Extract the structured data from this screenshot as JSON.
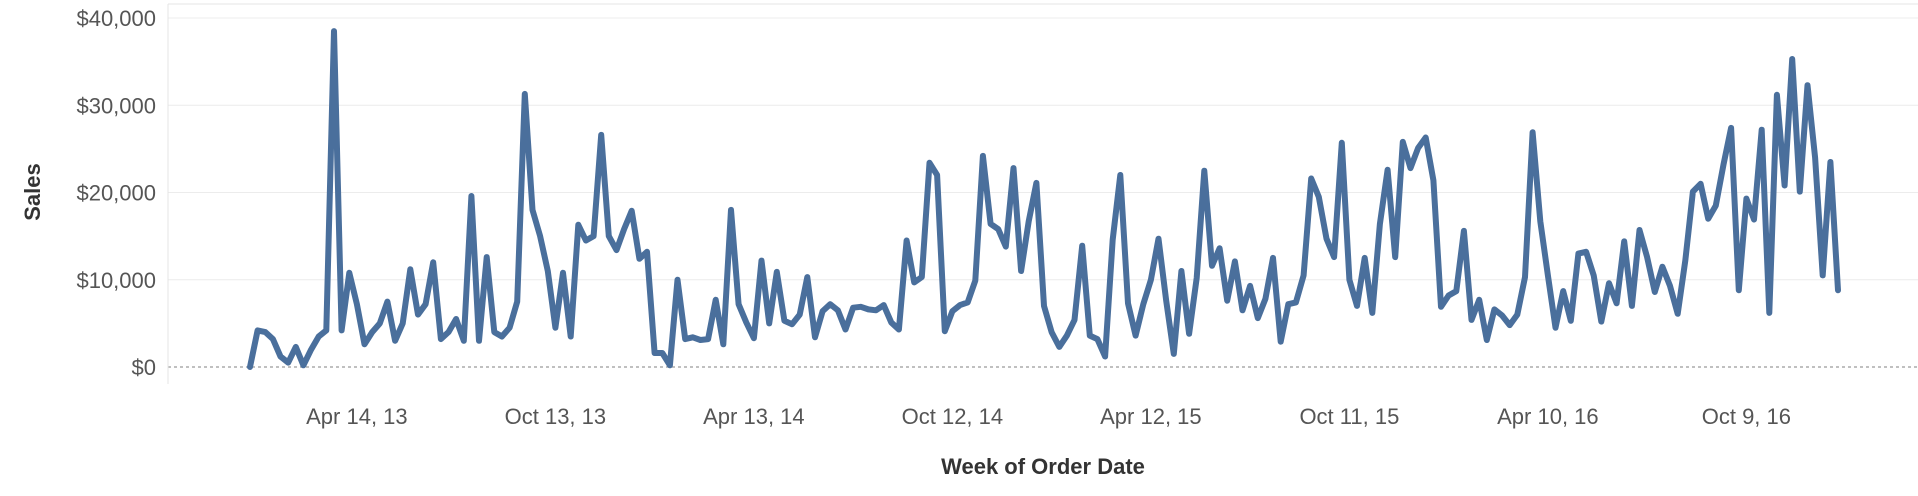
{
  "chart_data": {
    "type": "line",
    "title": "",
    "xlabel": "Week of Order Date",
    "ylabel": "Sales",
    "ylim": [
      0,
      40000
    ],
    "yticks": [
      {
        "value": 0,
        "label": "$0"
      },
      {
        "value": 10000,
        "label": "$10,000"
      },
      {
        "value": 20000,
        "label": "$20,000"
      },
      {
        "value": 30000,
        "label": "$30,000"
      },
      {
        "value": 40000,
        "label": "$40,000"
      }
    ],
    "xticks": [
      {
        "index": 14,
        "label": "Apr 14, 13"
      },
      {
        "index": 40,
        "label": "Oct 13, 13"
      },
      {
        "index": 66,
        "label": "Apr 13, 14"
      },
      {
        "index": 92,
        "label": "Oct 12, 14"
      },
      {
        "index": 118,
        "label": "Apr 12, 15"
      },
      {
        "index": 144,
        "label": "Oct 11, 15"
      },
      {
        "index": 170,
        "label": "Apr 10, 16"
      },
      {
        "index": 196,
        "label": "Oct 9, 16"
      }
    ],
    "grid": true,
    "colors": {
      "line": "#4a6f9c"
    },
    "series": [
      {
        "values": [
          0,
          4200,
          4000,
          3200,
          1200,
          500,
          2300,
          200,
          2000,
          3500,
          4200,
          38500,
          4200,
          10800,
          7200,
          2600,
          4000,
          5000,
          7500,
          3000,
          5000,
          11200,
          6000,
          7200,
          12000,
          3200,
          4000,
          5500,
          3000,
          19600,
          3000,
          12600,
          4000,
          3500,
          4500,
          7500,
          31300,
          18000,
          15000,
          11000,
          4500,
          10800,
          3500,
          16300,
          14500,
          15000,
          26600,
          15000,
          13400,
          15800,
          17900,
          12400,
          13200,
          1600,
          1600,
          200,
          10000,
          3200,
          3400,
          3100,
          3200,
          7700,
          2600,
          18000,
          7200,
          5100,
          3300,
          12200,
          5000,
          10900,
          5300,
          4900,
          6000,
          10300,
          3400,
          6400,
          7200,
          6500,
          4300,
          6800,
          6900,
          6600,
          6500,
          7100,
          5100,
          4300,
          14500,
          9700,
          10300,
          23400,
          22000,
          4100,
          6400,
          7100,
          7400,
          9900,
          24200,
          16400,
          15800,
          13800,
          22800,
          11000,
          16700,
          21100,
          7000,
          4000,
          2300,
          3600,
          5400,
          13900,
          3600,
          3200,
          1200,
          14600,
          22000,
          7300,
          3600,
          7200,
          10000,
          14700,
          7600,
          1500,
          11000,
          3800,
          10200,
          22500,
          11600,
          13600,
          7600,
          12100,
          6500,
          9300,
          5600,
          7800,
          12500,
          2900,
          7200,
          7400,
          10500,
          21600,
          19500,
          14700,
          12600,
          25700,
          10000,
          7000,
          12500,
          6200,
          16400,
          22600,
          12600,
          25800,
          22800,
          25100,
          26300,
          21400,
          6900,
          8200,
          8700,
          15600,
          5400,
          7700,
          3100,
          6600,
          5900,
          4800,
          6000,
          10300,
          26900,
          16700,
          10500,
          4500,
          8700,
          5300,
          13000,
          13200,
          10500,
          5200,
          9600,
          7300,
          14400,
          7000,
          15700,
          12600,
          8600,
          11500,
          9300,
          6100,
          12200,
          20100,
          21000,
          17000,
          18500,
          23200,
          27400,
          8800,
          19300,
          16900,
          27200,
          6200,
          31200,
          20800,
          35300,
          20100,
          32300,
          24000,
          10500,
          23500,
          8800
        ]
      }
    ]
  }
}
